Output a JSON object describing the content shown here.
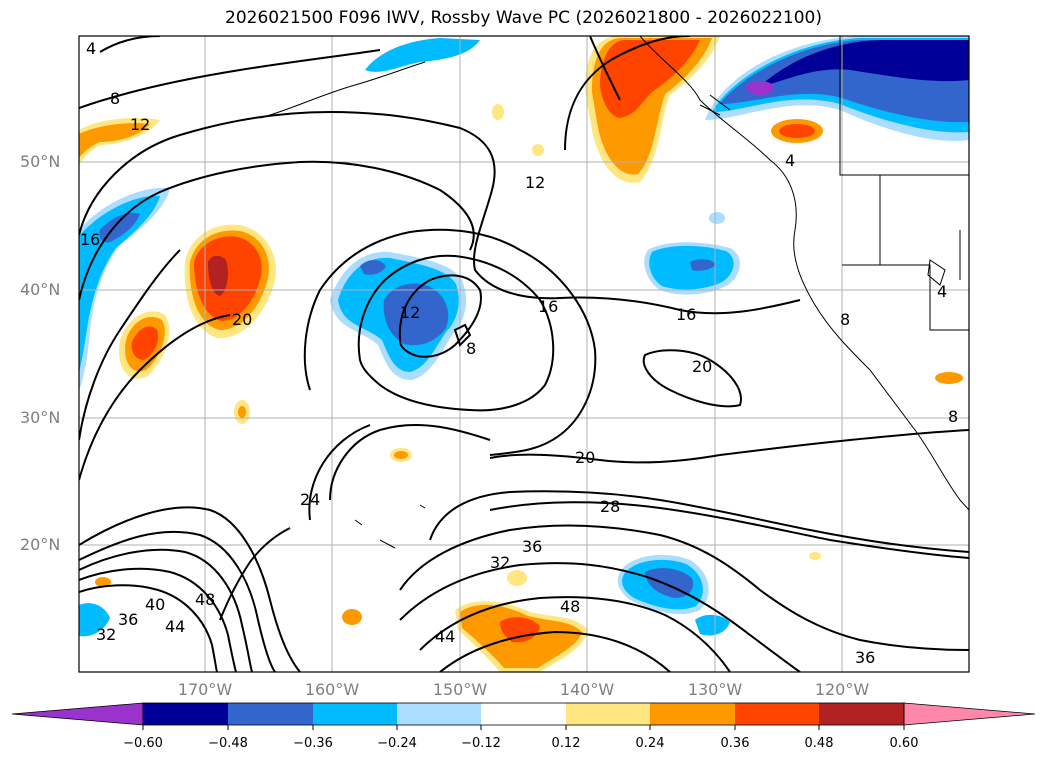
{
  "title": "2026021500 F096 IWV, Rossby Wave PC (2026021800 - 2026022100)",
  "map": {
    "lat_labels": [
      "50°N",
      "40°N",
      "30°N",
      "20°N"
    ],
    "lon_labels": [
      "170°W",
      "160°W",
      "150°W",
      "140°W",
      "130°W",
      "120°W"
    ],
    "contour_labels": [
      "8",
      "12",
      "16",
      "12",
      "8",
      "16",
      "20",
      "20",
      "28",
      "24",
      "32",
      "36",
      "48",
      "44",
      "40",
      "36",
      "32",
      "44",
      "48",
      "36",
      "4",
      "4",
      "8",
      "8",
      "20",
      "12",
      "16",
      "4"
    ]
  },
  "colorbar": {
    "tick_labels": [
      "−0.60",
      "−0.48",
      "−0.36",
      "−0.24",
      "−0.12",
      "0.12",
      "0.24",
      "0.36",
      "0.48",
      "0.60"
    ],
    "colors": [
      "#9933cc",
      "#000099",
      "#3366cc",
      "#00bbff",
      "#aaddff",
      "#ffffff",
      "#ffe680",
      "#ff9900",
      "#ff4400",
      "#b22222",
      "#ff88aa"
    ]
  },
  "colors": {
    "neg_strong": "#000099",
    "neg_mid": "#3366cc",
    "neg_light": "#00bbff",
    "neg_pale": "#aaddff",
    "pos_pale": "#ffe680",
    "pos_light": "#ff9900",
    "pos_mid": "#ff4400",
    "pos_strong": "#b22222"
  }
}
